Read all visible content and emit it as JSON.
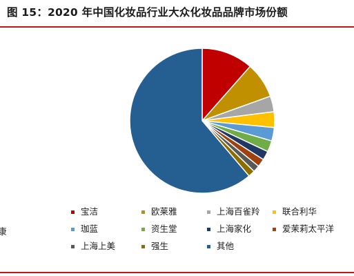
{
  "title": "图 15：2020 年中国化妆品行业大众化妆品品牌市场份额",
  "colors": {
    "title_rule": "#c0161b",
    "bottom_rule": "#c0161b",
    "slice_border": "#ffffff"
  },
  "chart_data": {
    "type": "pie",
    "title": "图 15：2020 年中国化妆品行业大众化妆品品牌市场份额",
    "start_angle_deg": 0,
    "direction": "clockwise",
    "legend_position": "bottom",
    "unit": "%",
    "slices": [
      {
        "label": "宝洁",
        "value": 11.5,
        "color": "#c00000"
      },
      {
        "label": "欧莱雅",
        "value": 8.0,
        "color": "#c09000"
      },
      {
        "label": "上海百雀羚",
        "value": 3.5,
        "color": "#a6a6a6"
      },
      {
        "label": "联合利华",
        "value": 3.5,
        "color": "#ffc000"
      },
      {
        "label": "珈蓝",
        "value": 3.0,
        "color": "#5b9bd5"
      },
      {
        "label": "资生堂",
        "value": 2.5,
        "color": "#70ad47"
      },
      {
        "label": "上海家化",
        "value": 2.0,
        "color": "#1f3864"
      },
      {
        "label": "爱茉莉太平洋",
        "value": 1.8,
        "color": "#a0420d"
      },
      {
        "label": "上海上美",
        "value": 1.5,
        "color": "#595959"
      },
      {
        "label": "强生",
        "value": 1.5,
        "color": "#8c6d00"
      },
      {
        "label": "其他",
        "value": 61.2,
        "color": "#255e91"
      }
    ]
  },
  "left_fragment": "康"
}
